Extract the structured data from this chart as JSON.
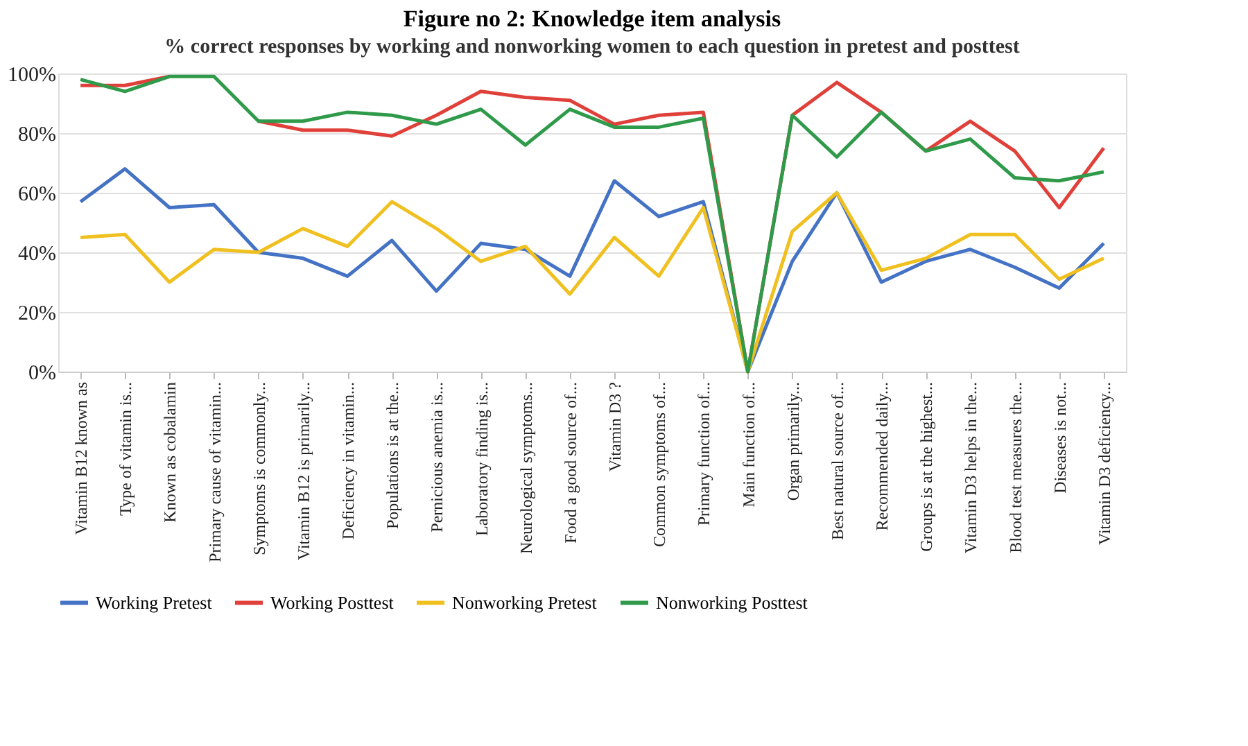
{
  "chart_data": {
    "type": "line",
    "title": "Figure no 2: Knowledge item analysis",
    "subtitle": "% correct responses by working and nonworking women to each question in pretest and posttest",
    "categories": [
      "Vitamin B12 known as",
      "Type of vitamin is...",
      "Known as cobalamin",
      "Primary cause of vitamin...",
      "Symptoms is commonly...",
      "Vitamin B12 is primarily...",
      "Deficiency in vitamin...",
      "Populations is at the...",
      "Pernicious anemia is...",
      "Laboratory finding is...",
      "Neurological symptoms...",
      "Food a good source of...",
      "Vitamin D3 ?",
      "Common symptoms of...",
      "Primary function of...",
      "Main function of...",
      "Organ primarily...",
      "Best natural source of...",
      "Recommended daily...",
      "Groups is at the highest...",
      "Vitamin D3 helps in the...",
      "Blood test measures the...",
      "Diseases is not...",
      "Vitamin D3 deficiency..."
    ],
    "series": [
      {
        "name": "Working Pretest",
        "color": "#4472c4",
        "values": [
          57,
          68,
          55,
          56,
          40,
          38,
          32,
          44,
          27,
          43,
          41,
          32,
          64,
          52,
          57,
          0,
          37,
          60,
          30,
          37,
          41,
          35,
          28,
          43
        ]
      },
      {
        "name": "Working Posttest",
        "color": "#e0403a",
        "values": [
          96,
          96,
          99,
          null,
          84,
          81,
          81,
          79,
          86,
          94,
          92,
          91,
          83,
          86,
          87,
          0,
          86,
          97,
          87,
          74,
          84,
          74,
          55,
          75
        ]
      },
      {
        "name": "Nonworking Pretest",
        "color": "#f0c020",
        "values": [
          45,
          46,
          30,
          41,
          40,
          48,
          42,
          57,
          48,
          37,
          42,
          26,
          45,
          32,
          55,
          0,
          47,
          60,
          34,
          38,
          46,
          46,
          31,
          38
        ]
      },
      {
        "name": "Nonworking Posttest",
        "color": "#2e9a4a",
        "values": [
          98,
          94,
          99,
          99,
          84,
          84,
          87,
          86,
          83,
          88,
          76,
          88,
          82,
          82,
          85,
          0,
          86,
          72,
          87,
          74,
          78,
          65,
          64,
          67
        ]
      }
    ],
    "ylim": [
      0,
      100
    ],
    "yticks": [
      {
        "value": 0,
        "label": "0%"
      },
      {
        "value": 20,
        "label": "20%"
      },
      {
        "value": 40,
        "label": "40%"
      },
      {
        "value": 60,
        "label": "60%"
      },
      {
        "value": 80,
        "label": "80%"
      },
      {
        "value": 100,
        "label": "100%"
      }
    ],
    "grid": "y",
    "legend": "bottom",
    "marker": "none",
    "line_style": "solid"
  }
}
